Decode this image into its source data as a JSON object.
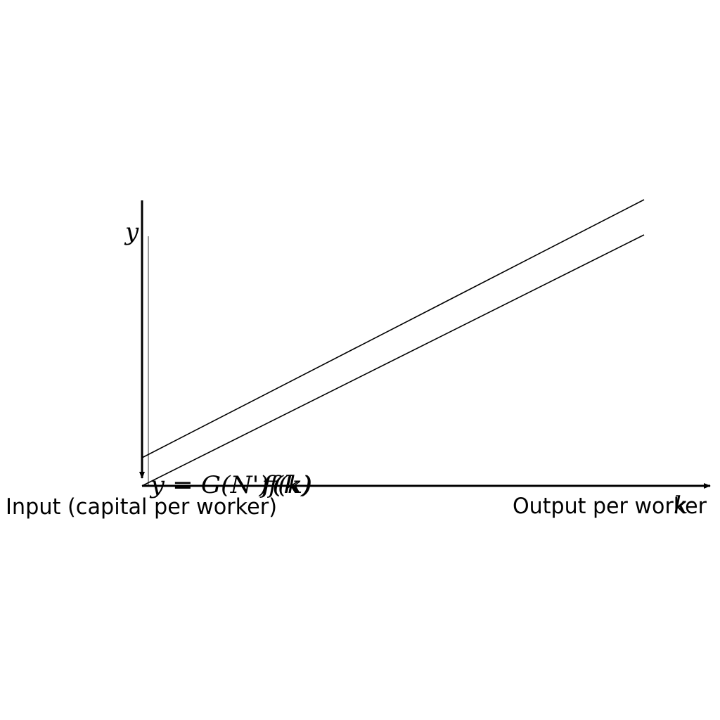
{
  "diagram": {
    "x_axis_label": "Output per worker",
    "x_axis_symbol": "k",
    "y_axis_label": "Input (capital per worker)",
    "y_axis_symbol": "y",
    "curve_labels": [
      "y = G(N')f(k)",
      "f(k)"
    ],
    "colors": {
      "ink": "#000000",
      "background": "#ffffff"
    }
  }
}
